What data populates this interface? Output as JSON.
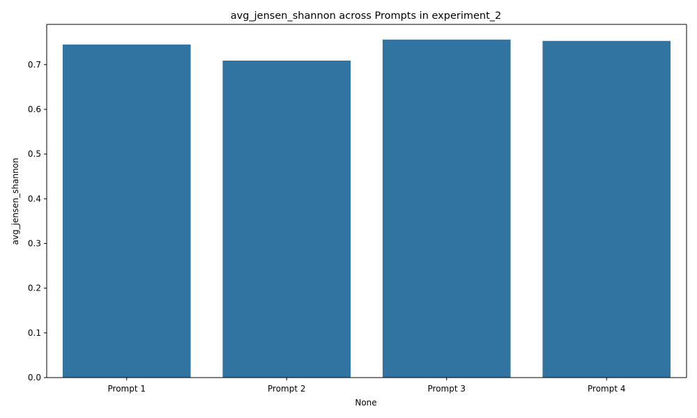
{
  "chart_data": {
    "type": "bar",
    "title": "avg_jensen_shannon across Prompts in experiment_2",
    "xlabel": "None",
    "ylabel": "avg_jensen_shannon",
    "categories": [
      "Prompt 1",
      "Prompt 2",
      "Prompt 3",
      "Prompt 4"
    ],
    "values": [
      0.745,
      0.709,
      0.756,
      0.753
    ],
    "ylim": [
      0,
      0.79
    ],
    "yticks": [
      0.0,
      0.1,
      0.2,
      0.3,
      0.4,
      0.5,
      0.6,
      0.7
    ],
    "ytick_labels": [
      "0.0",
      "0.1",
      "0.2",
      "0.3",
      "0.4",
      "0.5",
      "0.6",
      "0.7"
    ],
    "grid": false,
    "bar_color": "#3274a1"
  }
}
